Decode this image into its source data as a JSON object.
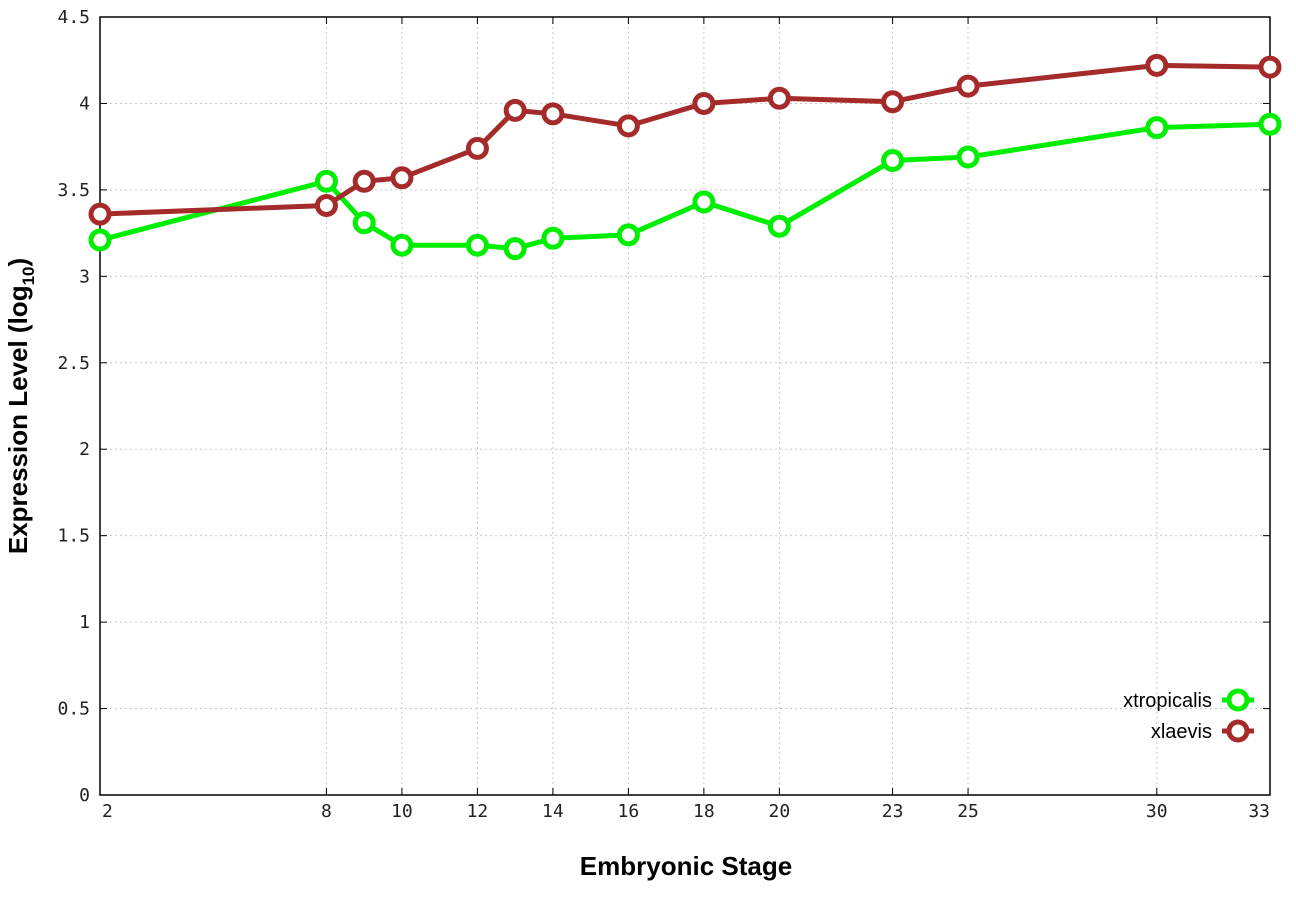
{
  "chart_data": {
    "type": "line",
    "title": "",
    "xlabel": "Embryonic Stage",
    "ylabel_main": "Expression Level (log",
    "ylabel_sub": "10",
    "ylabel_close": ")",
    "x_ticks": [
      2,
      8,
      10,
      12,
      14,
      16,
      18,
      20,
      23,
      25,
      30,
      33
    ],
    "y_ticks": [
      "0",
      "0.5",
      "1",
      "1.5",
      "2",
      "2.5",
      "3",
      "3.5",
      "4",
      "4.5"
    ],
    "xlim": [
      2,
      33
    ],
    "ylim": [
      0,
      4.5
    ],
    "grid": true,
    "legend_position": "bottom-right",
    "series": [
      {
        "name": "xtropicalis",
        "color": "#00ee00",
        "x": [
          2,
          8,
          9,
          10,
          12,
          13,
          14,
          16,
          18,
          20,
          23,
          25,
          30,
          33
        ],
        "y": [
          3.21,
          3.55,
          3.31,
          3.18,
          3.18,
          3.16,
          3.22,
          3.24,
          3.43,
          3.29,
          3.67,
          3.69,
          3.86,
          3.88
        ]
      },
      {
        "name": "xlaevis",
        "color": "#a52a2a",
        "x": [
          2,
          8,
          9,
          10,
          12,
          13,
          14,
          16,
          18,
          20,
          23,
          25,
          30,
          33
        ],
        "y": [
          3.36,
          3.41,
          3.55,
          3.57,
          3.74,
          3.96,
          3.94,
          3.87,
          4.0,
          4.03,
          4.01,
          4.1,
          4.22,
          4.21
        ]
      }
    ]
  }
}
